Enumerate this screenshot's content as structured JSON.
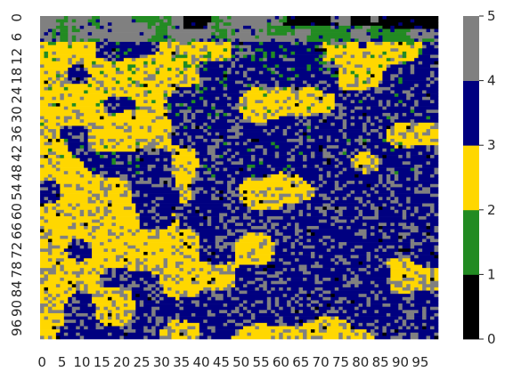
{
  "chart_data": {
    "type": "heatmap",
    "title": "",
    "xlabel": "",
    "ylabel": "",
    "rows": 100,
    "cols": 100,
    "x_tick_labels": [
      "0",
      "5",
      "10",
      "15",
      "20",
      "25",
      "30",
      "35",
      "40",
      "45",
      "50",
      "55",
      "60",
      "65",
      "70",
      "75",
      "80",
      "85",
      "90",
      "95"
    ],
    "y_tick_labels": [
      "0",
      "6",
      "12",
      "18",
      "24",
      "30",
      "36",
      "42",
      "48",
      "54",
      "60",
      "66",
      "72",
      "78",
      "84",
      "90",
      "96"
    ],
    "x_tick_step": 5,
    "y_tick_step": 6,
    "value_range": [
      0,
      5
    ],
    "colorbar": {
      "ticks": [
        "0",
        "1",
        "2",
        "3",
        "4",
        "5"
      ],
      "bands": [
        {
          "from": 0,
          "to": 1,
          "color": "#000000"
        },
        {
          "from": 1,
          "to": 2,
          "color": "#228B22"
        },
        {
          "from": 2,
          "to": 3,
          "color": "#FFD700"
        },
        {
          "from": 3,
          "to": 4,
          "color": "#000080"
        },
        {
          "from": 4,
          "to": 5,
          "color": "#808080"
        }
      ]
    },
    "categories": [
      {
        "value": 0,
        "color": "#000000"
      },
      {
        "value": 1,
        "color": "#228B22"
      },
      {
        "value": 2,
        "color": "#FFD700"
      },
      {
        "value": 3,
        "color": "#000080"
      },
      {
        "value": 4,
        "color": "#808080"
      }
    ],
    "region_summary": [
      {
        "region": "top rows 0-10",
        "dominant_values": [
          1,
          4
        ],
        "notes": "green and gray with black patches near top-right"
      },
      {
        "region": "rows 10-35",
        "dominant_values": [
          2,
          3,
          1,
          4
        ],
        "notes": "yellow and navy with green clusters"
      },
      {
        "region": "rows 35-60",
        "dominant_values": [
          2,
          3,
          4
        ],
        "notes": "yellow left side, navy center and right"
      },
      {
        "region": "rows 60-100",
        "dominant_values": [
          2,
          3,
          4
        ],
        "notes": "mixed yellow, navy and gray"
      }
    ],
    "grid": false,
    "legend": "colorbar-right"
  }
}
